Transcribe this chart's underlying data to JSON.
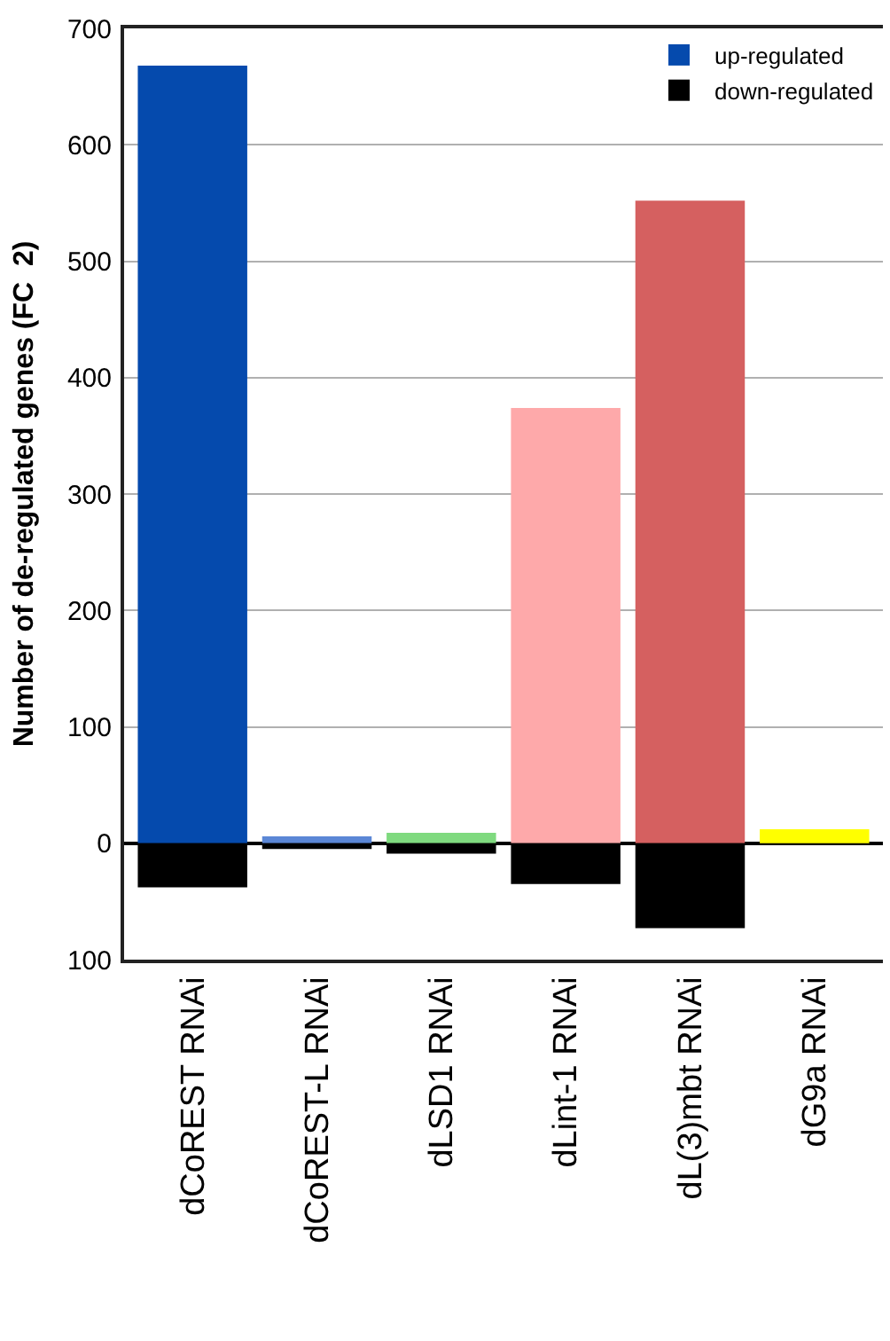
{
  "chart_data": {
    "type": "bar",
    "ylabel": "Number of de-regulated genes (FC  2)",
    "categories": [
      "dCoREST RNAi",
      "dCoREST-L RNAi",
      "dLSD1 RNAi",
      "dLint-1 RNAi",
      "dL(3)mbt RNAi",
      "dG9a RNAi"
    ],
    "series": [
      {
        "name": "up-regulated",
        "colors": [
          "#054aad",
          "#5b87d6",
          "#7fda7f",
          "#fea9aa",
          "#d56060",
          "#ffff00"
        ],
        "color": "#054aad",
        "values": [
          668,
          6,
          9,
          374,
          552,
          12
        ]
      },
      {
        "name": "down-regulated",
        "color": "#000000",
        "values": [
          -38,
          -5,
          -9,
          -35,
          -73,
          0
        ]
      }
    ],
    "stacked": true,
    "ylim": [
      -100,
      700
    ],
    "yticks": [
      {
        "value": -100,
        "label": "100"
      },
      0,
      100,
      200,
      300,
      400,
      500,
      600,
      700
    ],
    "grid": "y",
    "legend": "top right"
  }
}
